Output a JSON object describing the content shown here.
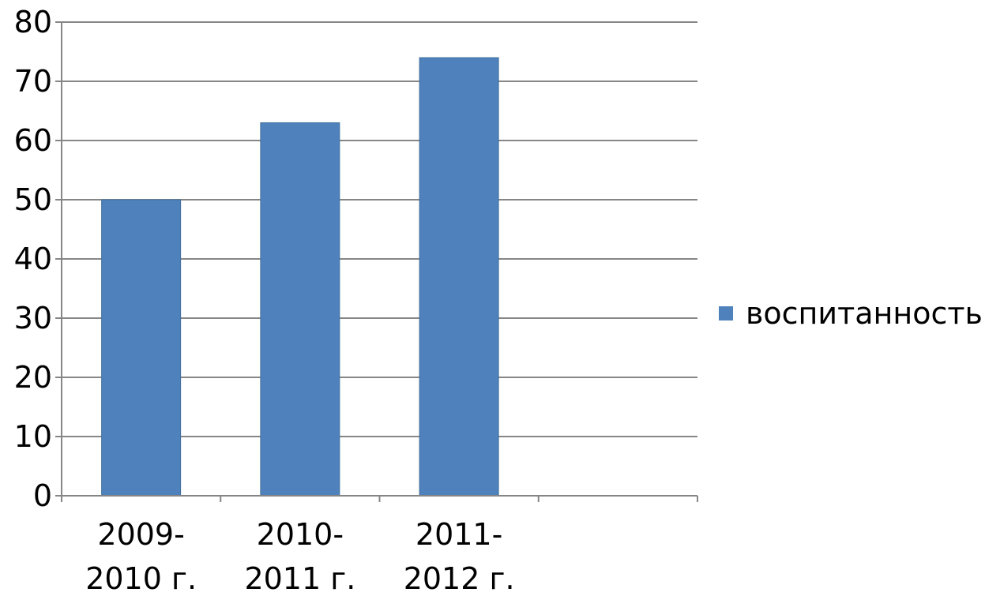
{
  "chart_data": {
    "type": "bar",
    "title": "",
    "xlabel": "",
    "ylabel": "",
    "categories": [
      [
        "2009-",
        "2010 г."
      ],
      [
        "2010-",
        "2011 г."
      ],
      [
        "2011-",
        "2012 г."
      ],
      [
        "",
        ""
      ]
    ],
    "series": [
      {
        "name": "воспитанность",
        "values": [
          50,
          63,
          74,
          null
        ],
        "color": "#4f81bd"
      }
    ],
    "ylim": [
      0,
      80
    ],
    "yticks": [
      "0",
      "10",
      "20",
      "30",
      "40",
      "50",
      "60",
      "70",
      "80"
    ],
    "grid": "horizontal",
    "legend_position": "right"
  }
}
